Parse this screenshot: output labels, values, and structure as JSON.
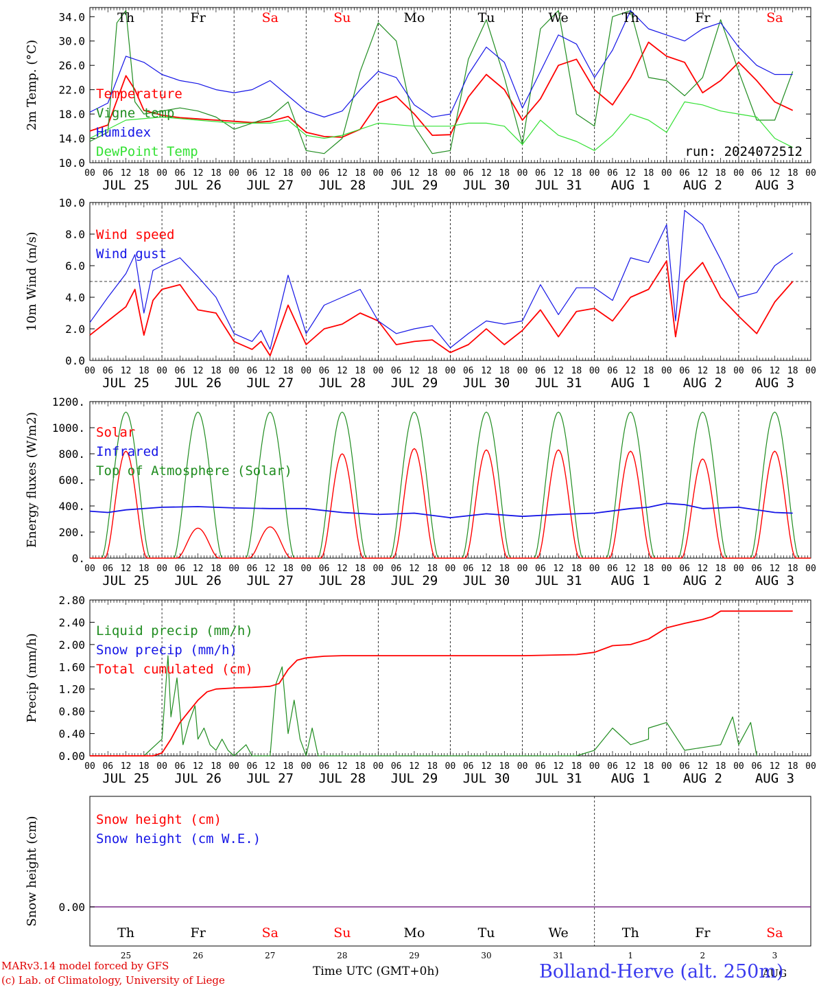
{
  "colors": {
    "red": "#ff0000",
    "green": "#1f8c1f",
    "lightgreen": "#33e133",
    "blue": "#1414e6",
    "purple": "#7a2a8a",
    "black": "#000000",
    "footer_blue": "#3a3aee"
  },
  "days": {
    "weekday_labels": [
      "Th",
      "Fr",
      "Sa",
      "Su",
      "Mo",
      "Tu",
      "We",
      "Th",
      "Fr",
      "Sa"
    ],
    "weekend_flags": [
      false,
      false,
      true,
      true,
      false,
      false,
      false,
      false,
      false,
      true
    ],
    "date_labels": [
      "JUL 25",
      "JUL 26",
      "JUL 27",
      "JUL 28",
      "JUL 29",
      "JUL 30",
      "JUL 31",
      "AUG  1",
      "AUG  2",
      "AUG  3"
    ],
    "day_numbers": [
      "25",
      "26",
      "27",
      "28",
      "29",
      "30",
      "31",
      "1",
      "2",
      "3"
    ],
    "hour_labels": [
      "00",
      "06",
      "12",
      "18"
    ],
    "final_hour_label": "00",
    "month_mark": "AUG"
  },
  "run_label": "run: 2024072512",
  "footer": {
    "model": "MARv3.14 model forced by GFS",
    "credit": "(c) Lab. of Climatology, University of Liege",
    "time_axis": "Time UTC (GMT+0h)",
    "station": "Bolland-Herve (alt. 250m)"
  },
  "chart_data": [
    {
      "type": "line",
      "ylabel": "2m Temp. (°C)",
      "ylim": [
        10,
        35.5
      ],
      "yticks": [
        "10.0",
        "14.0",
        "18.0",
        "22.0",
        "26.0",
        "30.0",
        "34.0"
      ],
      "ytick_values": [
        10,
        14,
        18,
        22,
        26,
        30,
        34
      ],
      "x_unit": "hours from 25 Jul 00 UTC",
      "legend": [
        "Temperature",
        "Vigne temp",
        "Humidex",
        "DewPoint Temp"
      ],
      "series": [
        {
          "name": "Temperature",
          "color_key": "red",
          "x": [
            0,
            6,
            12,
            15,
            18,
            24,
            30,
            36,
            42,
            48,
            54,
            60,
            66,
            72,
            78,
            84,
            90,
            96,
            102,
            108,
            114,
            120,
            126,
            132,
            138,
            144,
            150,
            156,
            162,
            168,
            174,
            180,
            186,
            192,
            198,
            204,
            210,
            216,
            222,
            228,
            234
          ],
          "values": [
            15.2,
            16.2,
            24.3,
            22.0,
            18.6,
            17.8,
            17.4,
            17.2,
            17.0,
            16.8,
            16.6,
            16.8,
            17.6,
            15.0,
            14.3,
            14.2,
            15.5,
            19.8,
            20.9,
            18.0,
            14.5,
            14.6,
            20.8,
            24.5,
            22.0,
            17.0,
            20.5,
            26.0,
            27.0,
            22.0,
            19.5,
            24.0,
            29.8,
            27.5,
            26.5,
            21.5,
            23.5,
            26.5,
            23.5,
            20.0,
            18.6
          ]
        },
        {
          "name": "Vigne temp",
          "color_key": "green",
          "x": [
            0,
            6,
            9,
            12,
            15,
            18,
            24,
            30,
            36,
            42,
            48,
            54,
            60,
            66,
            72,
            78,
            84,
            90,
            96,
            102,
            108,
            114,
            120,
            126,
            132,
            138,
            144,
            150,
            156,
            162,
            168,
            174,
            180,
            186,
            192,
            198,
            204,
            210,
            216,
            222,
            228,
            234
          ],
          "values": [
            13.5,
            15.0,
            33.0,
            35.0,
            20.0,
            18.0,
            18.5,
            19.0,
            18.5,
            17.5,
            15.5,
            16.5,
            17.5,
            20.0,
            12.0,
            11.5,
            14.0,
            25.0,
            33.0,
            30.0,
            16.0,
            11.5,
            12.0,
            27.0,
            33.5,
            24.0,
            13.0,
            32.0,
            35.0,
            18.0,
            16.0,
            34.0,
            35.0,
            24.0,
            23.5,
            21.0,
            24.0,
            33.5,
            25.0,
            17.0,
            17.0,
            25.0
          ]
        },
        {
          "name": "Humidex",
          "color_key": "blue",
          "x": [
            0,
            6,
            12,
            18,
            24,
            30,
            36,
            42,
            48,
            54,
            60,
            66,
            72,
            78,
            84,
            90,
            96,
            102,
            108,
            114,
            120,
            126,
            132,
            138,
            144,
            150,
            156,
            162,
            168,
            174,
            180,
            186,
            192,
            198,
            204,
            210,
            216,
            222,
            228,
            234
          ],
          "values": [
            18.3,
            19.8,
            27.5,
            26.5,
            24.5,
            23.5,
            23.0,
            22.0,
            21.5,
            22.0,
            23.5,
            21.0,
            18.5,
            17.5,
            18.5,
            22.0,
            25.0,
            24.0,
            19.5,
            17.5,
            18.0,
            24.5,
            29.0,
            26.5,
            19.0,
            25.0,
            31.0,
            29.5,
            24.0,
            28.5,
            35.0,
            32.0,
            31.0,
            30.0,
            32.0,
            33.0,
            29.0,
            26.0,
            24.5,
            24.5
          ]
        },
        {
          "name": "DewPoint Temp",
          "color_key": "lightgreen",
          "x": [
            0,
            12,
            24,
            36,
            48,
            60,
            66,
            72,
            78,
            84,
            96,
            108,
            120,
            126,
            132,
            138,
            144,
            150,
            156,
            162,
            168,
            174,
            180,
            186,
            192,
            198,
            204,
            210,
            216,
            222,
            228,
            234
          ],
          "values": [
            14.0,
            17.0,
            17.5,
            17.0,
            16.5,
            16.5,
            17.0,
            14.5,
            14.0,
            14.5,
            16.5,
            16.0,
            16.0,
            16.5,
            16.5,
            16.0,
            13.0,
            17.0,
            14.5,
            13.5,
            12.0,
            14.5,
            18.0,
            17.0,
            15.0,
            20.0,
            19.5,
            18.5,
            18.0,
            17.5,
            14.0,
            12.5
          ]
        }
      ]
    },
    {
      "type": "line",
      "ylabel": "10m Wind (m/s)",
      "ylim": [
        0,
        10
      ],
      "yticks": [
        "0.0",
        "2.0",
        "4.0",
        "6.0",
        "8.0",
        "10.0"
      ],
      "ytick_values": [
        0,
        2,
        4,
        6,
        8,
        10
      ],
      "reference_line": 5.0,
      "legend": [
        "Wind speed",
        "Wind gust"
      ],
      "series": [
        {
          "name": "Wind speed",
          "color_key": "red",
          "x": [
            0,
            6,
            12,
            15,
            18,
            21,
            24,
            30,
            36,
            42,
            48,
            54,
            57,
            60,
            66,
            72,
            78,
            84,
            90,
            96,
            102,
            108,
            114,
            120,
            126,
            132,
            138,
            144,
            150,
            156,
            162,
            168,
            174,
            180,
            186,
            192,
            195,
            198,
            204,
            210,
            216,
            222,
            228,
            234
          ],
          "values": [
            1.6,
            2.5,
            3.4,
            4.5,
            1.6,
            3.8,
            4.5,
            4.8,
            3.2,
            3.0,
            1.2,
            0.7,
            1.2,
            0.3,
            3.5,
            1.0,
            2.0,
            2.3,
            3.0,
            2.5,
            1.0,
            1.2,
            1.3,
            0.5,
            1.0,
            2.0,
            1.0,
            1.9,
            3.2,
            1.5,
            3.1,
            3.3,
            2.5,
            4.0,
            4.5,
            6.3,
            1.5,
            5.0,
            6.2,
            4.0,
            2.8,
            1.7,
            3.7,
            5.0
          ]
        },
        {
          "name": "Wind gust",
          "color_key": "blue",
          "x": [
            0,
            6,
            12,
            15,
            18,
            21,
            24,
            30,
            36,
            42,
            48,
            54,
            57,
            60,
            66,
            72,
            78,
            84,
            90,
            96,
            102,
            108,
            114,
            120,
            126,
            132,
            138,
            144,
            150,
            156,
            162,
            168,
            174,
            180,
            186,
            192,
            195,
            198,
            204,
            210,
            216,
            222,
            228,
            234
          ],
          "values": [
            2.4,
            4.0,
            5.5,
            6.7,
            3.0,
            5.7,
            6.0,
            6.5,
            5.3,
            4.0,
            1.7,
            1.2,
            1.9,
            0.7,
            5.4,
            1.7,
            3.5,
            4.0,
            4.5,
            2.5,
            1.7,
            2.0,
            2.2,
            0.8,
            1.7,
            2.5,
            2.3,
            2.5,
            4.8,
            2.9,
            4.6,
            4.6,
            3.8,
            6.5,
            6.2,
            8.6,
            2.5,
            9.5,
            8.6,
            6.4,
            4.0,
            4.3,
            6.0,
            6.8
          ]
        }
      ]
    },
    {
      "type": "line",
      "ylabel": "Energy fluxes (W/m2)",
      "ylim": [
        0,
        1200
      ],
      "yticks": [
        "0.",
        "200.",
        "400.",
        "600.",
        "800.",
        "1000.",
        "1200."
      ],
      "ytick_values": [
        0,
        200,
        400,
        600,
        800,
        1000,
        1200
      ],
      "legend": [
        "Solar",
        "Infrared",
        "Top of Atmosphere (Solar)"
      ],
      "toa_peak": 1120,
      "solar_daily_peaks": [
        820,
        230,
        240,
        800,
        840,
        830,
        830,
        820,
        760,
        820
      ],
      "series": [
        {
          "name": "Infrared",
          "color_key": "blue",
          "x": [
            0,
            6,
            12,
            24,
            36,
            48,
            60,
            72,
            84,
            96,
            108,
            120,
            132,
            144,
            156,
            168,
            180,
            186,
            192,
            198,
            204,
            216,
            228,
            234
          ],
          "values": [
            360,
            350,
            370,
            390,
            395,
            385,
            380,
            380,
            350,
            335,
            345,
            310,
            340,
            320,
            335,
            345,
            380,
            390,
            420,
            410,
            380,
            390,
            350,
            345
          ]
        }
      ]
    },
    {
      "type": "line",
      "ylabel": "Precip (mm/h)",
      "ylim": [
        0,
        2.8
      ],
      "yticks": [
        "0.00",
        "0.40",
        "0.80",
        "1.20",
        "1.60",
        "2.00",
        "2.40",
        "2.80"
      ],
      "ytick_values": [
        0,
        0.4,
        0.8,
        1.2,
        1.6,
        2.0,
        2.4,
        2.8
      ],
      "legend": [
        "Liquid precip (mm/h)",
        "Snow precip (mm/h)",
        "Total cumulated (cm)"
      ],
      "series": [
        {
          "name": "Liquid precip (mm/h)",
          "color_key": "green",
          "x": [
            0,
            18,
            22,
            24,
            26,
            27,
            29,
            31,
            33,
            35,
            36,
            38,
            40,
            42,
            44,
            46,
            48,
            52,
            54,
            56,
            60,
            62,
            64,
            66,
            68,
            70,
            72,
            74,
            76,
            78,
            84,
            162,
            168,
            174,
            180,
            186,
            186,
            192,
            198,
            204,
            210,
            214,
            216,
            220,
            222
          ],
          "values": [
            0,
            0,
            0.2,
            0.3,
            1.8,
            0.7,
            1.4,
            0.2,
            0.6,
            0.9,
            0.3,
            0.5,
            0.2,
            0.1,
            0.3,
            0.1,
            0,
            0.2,
            0,
            0,
            0,
            1.3,
            1.6,
            0.4,
            1.0,
            0.3,
            0,
            0.5,
            0,
            0,
            0,
            0,
            0.1,
            0.5,
            0.2,
            0.3,
            0.5,
            0.6,
            0.1,
            0.15,
            0.2,
            0.7,
            0.2,
            0.6,
            0
          ]
        },
        {
          "name": "Total cumulated (cm)",
          "color_key": "red",
          "x": [
            0,
            21,
            24,
            27,
            30,
            33,
            36,
            39,
            42,
            48,
            54,
            60,
            63,
            66,
            69,
            72,
            78,
            84,
            96,
            120,
            144,
            162,
            168,
            174,
            180,
            186,
            192,
            198,
            204,
            207,
            210,
            216,
            222,
            234
          ],
          "values": [
            0,
            0,
            0.05,
            0.3,
            0.6,
            0.8,
            1.0,
            1.15,
            1.2,
            1.22,
            1.23,
            1.25,
            1.3,
            1.55,
            1.72,
            1.76,
            1.79,
            1.8,
            1.8,
            1.8,
            1.8,
            1.82,
            1.86,
            1.98,
            2.0,
            2.1,
            2.3,
            2.38,
            2.45,
            2.5,
            2.6,
            2.6,
            2.6,
            2.6
          ]
        }
      ]
    },
    {
      "type": "line",
      "ylabel": "Snow height (cm)",
      "ytick_labels": [
        "0.00"
      ],
      "legend": [
        "Snow height (cm)",
        "Snow height (cm W.E.)"
      ],
      "series": [
        {
          "name": "Snow height (cm)",
          "color_key": "red",
          "x": [
            0,
            240
          ],
          "values": [
            0,
            0
          ]
        },
        {
          "name": "Snow height (cm W.E.)",
          "color_key": "blue",
          "x": [
            0,
            240
          ],
          "values": [
            0,
            0
          ]
        }
      ]
    }
  ]
}
